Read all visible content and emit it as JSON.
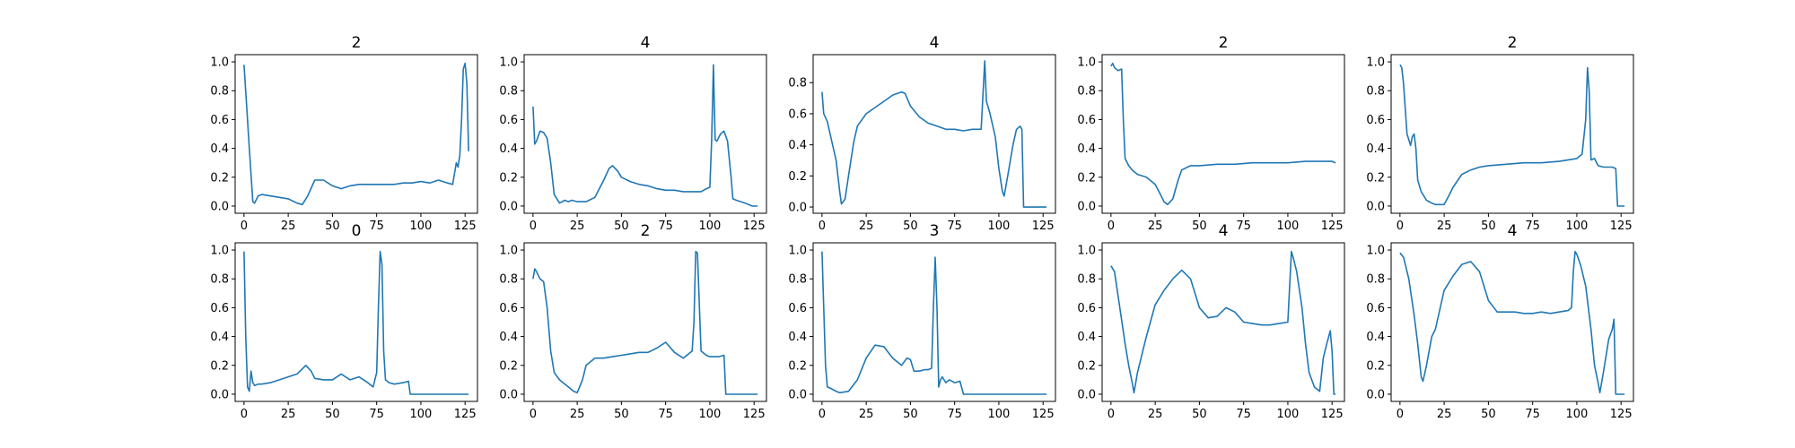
{
  "chart_data": [
    {
      "type": "line",
      "title": "2",
      "xlim": [
        -5,
        132
      ],
      "ylim": [
        -0.05,
        1.05
      ],
      "xticks": [
        0,
        25,
        50,
        75,
        100,
        125
      ],
      "yticks": [
        0.0,
        0.2,
        0.4,
        0.6,
        0.8,
        1.0
      ],
      "x": [
        0,
        3,
        5,
        6,
        8,
        10,
        15,
        20,
        25,
        30,
        33,
        36,
        40,
        45,
        50,
        55,
        60,
        65,
        70,
        75,
        80,
        85,
        90,
        95,
        100,
        105,
        110,
        115,
        118,
        120,
        121,
        122,
        123,
        124,
        125,
        126,
        127
      ],
      "y": [
        0.98,
        0.4,
        0.03,
        0.02,
        0.07,
        0.08,
        0.07,
        0.06,
        0.05,
        0.02,
        0.01,
        0.07,
        0.18,
        0.18,
        0.14,
        0.12,
        0.14,
        0.15,
        0.15,
        0.15,
        0.15,
        0.15,
        0.16,
        0.16,
        0.17,
        0.16,
        0.18,
        0.16,
        0.15,
        0.3,
        0.27,
        0.35,
        0.6,
        0.95,
        0.99,
        0.85,
        0.38
      ]
    },
    {
      "type": "line",
      "title": "4",
      "xlim": [
        -5,
        132
      ],
      "ylim": [
        -0.05,
        1.05
      ],
      "xticks": [
        0,
        25,
        50,
        75,
        100,
        125
      ],
      "yticks": [
        0.0,
        0.2,
        0.4,
        0.6,
        0.8,
        1.0
      ],
      "x": [
        0,
        1,
        2,
        4,
        6,
        8,
        10,
        12,
        13,
        15,
        18,
        20,
        22,
        25,
        28,
        30,
        35,
        40,
        43,
        45,
        48,
        50,
        55,
        60,
        65,
        70,
        75,
        80,
        85,
        90,
        95,
        98,
        100,
        101,
        102,
        103,
        104,
        106,
        108,
        110,
        112,
        113,
        115,
        120,
        124,
        127
      ],
      "y": [
        0.69,
        0.43,
        0.45,
        0.52,
        0.51,
        0.47,
        0.3,
        0.08,
        0.06,
        0.02,
        0.04,
        0.03,
        0.04,
        0.03,
        0.03,
        0.03,
        0.06,
        0.18,
        0.26,
        0.28,
        0.24,
        0.2,
        0.17,
        0.15,
        0.14,
        0.12,
        0.11,
        0.11,
        0.1,
        0.1,
        0.1,
        0.12,
        0.13,
        0.45,
        0.98,
        0.46,
        0.45,
        0.5,
        0.52,
        0.45,
        0.2,
        0.05,
        0.04,
        0.02,
        0.0,
        0.0
      ]
    },
    {
      "type": "line",
      "title": "4",
      "xlim": [
        -5,
        132
      ],
      "ylim": [
        -0.04,
        0.98
      ],
      "xticks": [
        0,
        25,
        50,
        75,
        100,
        125
      ],
      "yticks": [
        0.0,
        0.2,
        0.4,
        0.6,
        0.8
      ],
      "x": [
        0,
        1,
        3,
        5,
        8,
        10,
        11,
        13,
        15,
        18,
        20,
        25,
        30,
        35,
        40,
        45,
        47,
        50,
        55,
        60,
        65,
        70,
        75,
        80,
        85,
        90,
        92,
        93,
        95,
        98,
        100,
        102,
        103,
        105,
        108,
        110,
        112,
        113,
        114,
        115,
        120,
        127
      ],
      "y": [
        0.74,
        0.6,
        0.55,
        0.45,
        0.3,
        0.1,
        0.02,
        0.05,
        0.2,
        0.42,
        0.52,
        0.6,
        0.64,
        0.68,
        0.72,
        0.74,
        0.73,
        0.65,
        0.58,
        0.54,
        0.52,
        0.5,
        0.5,
        0.49,
        0.5,
        0.5,
        0.94,
        0.68,
        0.6,
        0.45,
        0.25,
        0.1,
        0.07,
        0.2,
        0.4,
        0.5,
        0.52,
        0.5,
        0.0,
        0.0,
        0.0,
        0.0
      ]
    },
    {
      "type": "line",
      "title": "2",
      "xlim": [
        -5,
        132
      ],
      "ylim": [
        -0.05,
        1.05
      ],
      "xticks": [
        0,
        25,
        50,
        75,
        100,
        125
      ],
      "yticks": [
        0.0,
        0.2,
        0.4,
        0.6,
        0.8,
        1.0
      ],
      "x": [
        0,
        1,
        2,
        4,
        6,
        7,
        8,
        10,
        12,
        15,
        20,
        25,
        28,
        30,
        32,
        35,
        38,
        40,
        45,
        50,
        60,
        70,
        80,
        90,
        100,
        110,
        120,
        125,
        127
      ],
      "y": [
        0.97,
        0.99,
        0.96,
        0.94,
        0.95,
        0.6,
        0.33,
        0.28,
        0.25,
        0.22,
        0.2,
        0.15,
        0.08,
        0.03,
        0.01,
        0.05,
        0.18,
        0.25,
        0.28,
        0.28,
        0.29,
        0.29,
        0.3,
        0.3,
        0.3,
        0.31,
        0.31,
        0.31,
        0.3
      ]
    },
    {
      "type": "line",
      "title": "2",
      "xlim": [
        -5,
        132
      ],
      "ylim": [
        -0.05,
        1.05
      ],
      "xticks": [
        0,
        25,
        50,
        75,
        100,
        125
      ],
      "yticks": [
        0.0,
        0.2,
        0.4,
        0.6,
        0.8,
        1.0
      ],
      "x": [
        0,
        1,
        2,
        4,
        6,
        7,
        8,
        9,
        10,
        12,
        15,
        18,
        20,
        25,
        28,
        30,
        35,
        40,
        45,
        50,
        60,
        70,
        80,
        90,
        100,
        103,
        105,
        106,
        107,
        108,
        110,
        112,
        115,
        120,
        122,
        123,
        125,
        127
      ],
      "y": [
        0.98,
        0.96,
        0.85,
        0.5,
        0.42,
        0.48,
        0.5,
        0.4,
        0.18,
        0.1,
        0.04,
        0.02,
        0.01,
        0.01,
        0.08,
        0.13,
        0.22,
        0.25,
        0.27,
        0.28,
        0.29,
        0.3,
        0.3,
        0.31,
        0.33,
        0.36,
        0.6,
        0.96,
        0.8,
        0.32,
        0.33,
        0.28,
        0.27,
        0.27,
        0.26,
        0.0,
        0.0,
        0.0
      ]
    },
    {
      "type": "line",
      "title": "0",
      "xlim": [
        -5,
        132
      ],
      "ylim": [
        -0.05,
        1.05
      ],
      "xticks": [
        0,
        25,
        50,
        75,
        100,
        125
      ],
      "yticks": [
        0.0,
        0.2,
        0.4,
        0.6,
        0.8,
        1.0
      ],
      "x": [
        0,
        1,
        2,
        3,
        4,
        5,
        6,
        8,
        10,
        15,
        20,
        25,
        30,
        35,
        38,
        40,
        45,
        50,
        55,
        60,
        65,
        70,
        73,
        75,
        76,
        77,
        78,
        79,
        80,
        82,
        85,
        90,
        93,
        94,
        95,
        100,
        110,
        120,
        127
      ],
      "y": [
        0.99,
        0.4,
        0.05,
        0.02,
        0.16,
        0.08,
        0.06,
        0.07,
        0.07,
        0.08,
        0.1,
        0.12,
        0.14,
        0.2,
        0.16,
        0.11,
        0.1,
        0.1,
        0.14,
        0.1,
        0.12,
        0.08,
        0.05,
        0.15,
        0.6,
        0.99,
        0.9,
        0.3,
        0.1,
        0.08,
        0.07,
        0.08,
        0.09,
        0.0,
        0.0,
        0.0,
        0.0,
        0.0,
        0.0
      ]
    },
    {
      "type": "line",
      "title": "2",
      "xlim": [
        -5,
        132
      ],
      "ylim": [
        -0.05,
        1.05
      ],
      "xticks": [
        0,
        25,
        50,
        75,
        100,
        125
      ],
      "yticks": [
        0.0,
        0.2,
        0.4,
        0.6,
        0.8,
        1.0
      ],
      "x": [
        0,
        1,
        2,
        4,
        6,
        8,
        10,
        12,
        15,
        20,
        23,
        25,
        28,
        30,
        35,
        40,
        45,
        50,
        55,
        60,
        65,
        70,
        75,
        80,
        85,
        90,
        91,
        92,
        93,
        95,
        98,
        100,
        105,
        108,
        109,
        110,
        115,
        120,
        127
      ],
      "y": [
        0.8,
        0.87,
        0.85,
        0.8,
        0.78,
        0.6,
        0.3,
        0.15,
        0.1,
        0.05,
        0.02,
        0.01,
        0.1,
        0.2,
        0.25,
        0.25,
        0.26,
        0.27,
        0.28,
        0.29,
        0.29,
        0.32,
        0.36,
        0.29,
        0.25,
        0.3,
        0.5,
        0.99,
        0.98,
        0.3,
        0.27,
        0.26,
        0.26,
        0.27,
        0.0,
        0.0,
        0.0,
        0.0,
        0.0
      ]
    },
    {
      "type": "line",
      "title": "3",
      "xlim": [
        -5,
        132
      ],
      "ylim": [
        -0.05,
        1.05
      ],
      "xticks": [
        0,
        25,
        50,
        75,
        100,
        125
      ],
      "yticks": [
        0.0,
        0.2,
        0.4,
        0.6,
        0.8,
        1.0
      ],
      "x": [
        0,
        1,
        2,
        3,
        5,
        8,
        10,
        15,
        20,
        25,
        30,
        35,
        40,
        45,
        48,
        50,
        52,
        55,
        58,
        60,
        62,
        63,
        64,
        65,
        66,
        67,
        68,
        70,
        72,
        75,
        78,
        80,
        85,
        90,
        100,
        110,
        120,
        127
      ],
      "y": [
        0.99,
        0.6,
        0.2,
        0.05,
        0.04,
        0.02,
        0.01,
        0.02,
        0.1,
        0.25,
        0.34,
        0.33,
        0.25,
        0.2,
        0.25,
        0.24,
        0.16,
        0.16,
        0.17,
        0.17,
        0.18,
        0.6,
        0.95,
        0.6,
        0.05,
        0.1,
        0.12,
        0.08,
        0.1,
        0.08,
        0.09,
        0.0,
        0.0,
        0.0,
        0.0,
        0.0,
        0.0,
        0.0
      ]
    },
    {
      "type": "line",
      "title": "4",
      "xlim": [
        -5,
        132
      ],
      "ylim": [
        -0.05,
        1.05
      ],
      "xticks": [
        0,
        25,
        50,
        75,
        100,
        125
      ],
      "yticks": [
        0.0,
        0.2,
        0.4,
        0.6,
        0.8,
        1.0
      ],
      "x": [
        0,
        2,
        5,
        8,
        10,
        12,
        13,
        15,
        18,
        20,
        25,
        30,
        35,
        40,
        45,
        50,
        55,
        60,
        65,
        70,
        75,
        80,
        85,
        90,
        95,
        100,
        102,
        103,
        105,
        108,
        110,
        112,
        115,
        118,
        120,
        122,
        124,
        125,
        126,
        127
      ],
      "y": [
        0.89,
        0.85,
        0.6,
        0.35,
        0.2,
        0.08,
        0.01,
        0.15,
        0.3,
        0.4,
        0.62,
        0.72,
        0.8,
        0.86,
        0.8,
        0.6,
        0.53,
        0.54,
        0.6,
        0.57,
        0.5,
        0.49,
        0.48,
        0.48,
        0.49,
        0.5,
        0.99,
        0.95,
        0.85,
        0.6,
        0.35,
        0.15,
        0.05,
        0.02,
        0.25,
        0.35,
        0.44,
        0.3,
        0.0,
        0.0
      ]
    },
    {
      "type": "line",
      "title": "4",
      "xlim": [
        -5,
        132
      ],
      "ylim": [
        -0.05,
        1.05
      ],
      "xticks": [
        0,
        25,
        50,
        75,
        100,
        125
      ],
      "yticks": [
        0.0,
        0.2,
        0.4,
        0.6,
        0.8,
        1.0
      ],
      "x": [
        0,
        2,
        5,
        8,
        10,
        12,
        13,
        15,
        18,
        20,
        25,
        30,
        35,
        40,
        45,
        50,
        55,
        60,
        65,
        70,
        75,
        80,
        85,
        90,
        95,
        97,
        98,
        99,
        100,
        102,
        105,
        108,
        110,
        112,
        113,
        115,
        118,
        120,
        121,
        122,
        125,
        127
      ],
      "y": [
        0.98,
        0.95,
        0.8,
        0.55,
        0.35,
        0.12,
        0.09,
        0.2,
        0.4,
        0.45,
        0.72,
        0.82,
        0.9,
        0.92,
        0.85,
        0.65,
        0.57,
        0.57,
        0.57,
        0.56,
        0.56,
        0.57,
        0.56,
        0.57,
        0.58,
        0.6,
        0.85,
        0.99,
        0.97,
        0.9,
        0.75,
        0.45,
        0.2,
        0.08,
        0.01,
        0.15,
        0.38,
        0.45,
        0.52,
        0.0,
        0.0,
        0.0
      ]
    }
  ]
}
